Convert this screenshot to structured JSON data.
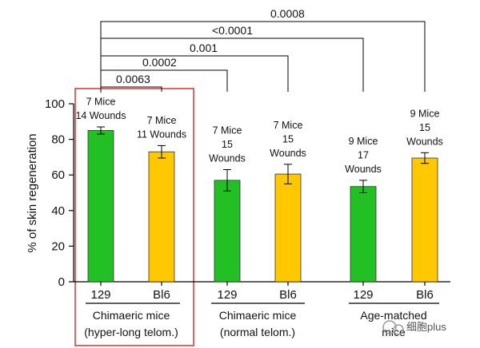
{
  "chart_data": {
    "type": "bar",
    "ylabel": "% of skin regeneration",
    "ylim": [
      0,
      100
    ],
    "yticks": [
      0,
      20,
      40,
      60,
      80,
      100
    ],
    "grid": false,
    "groups": [
      {
        "line1": "Chimaeric mice",
        "line2": "(hyper-long telom.)",
        "highlighted": true
      },
      {
        "line1": "Chimaeric mice",
        "line2": "(normal telom.)",
        "highlighted": false
      },
      {
        "line1": "Age-matched",
        "line2": "mice",
        "highlighted": false
      }
    ],
    "bars": [
      {
        "category": "129",
        "group": 0,
        "value": 85,
        "error": 2,
        "color": "#22c024",
        "note": [
          "7 Mice",
          "14 Wounds"
        ]
      },
      {
        "category": "Bl6",
        "group": 0,
        "value": 73,
        "error": 3.5,
        "color": "#ffc800",
        "note": [
          "7 Mice",
          "11 Wounds"
        ]
      },
      {
        "category": "129",
        "group": 1,
        "value": 57,
        "error": 6,
        "color": "#22c024",
        "note": [
          "7 Mice",
          "15",
          "Wounds"
        ]
      },
      {
        "category": "Bl6",
        "group": 1,
        "value": 60.5,
        "error": 5.5,
        "color": "#ffc800",
        "note": [
          "7 Mice",
          "15",
          "Wounds"
        ]
      },
      {
        "category": "129",
        "group": 2,
        "value": 53.5,
        "error": 3.5,
        "color": "#22c024",
        "note": [
          "9 Mice",
          "17",
          "Wounds"
        ]
      },
      {
        "category": "Bl6",
        "group": 2,
        "value": 69.5,
        "error": 3,
        "color": "#ffc800",
        "note": [
          "9 Mice",
          "15",
          "Wounds"
        ]
      }
    ],
    "comparisons": [
      {
        "from": 0,
        "to": 1,
        "label": "0.0063"
      },
      {
        "from": 0,
        "to": 2,
        "label": "0.0002"
      },
      {
        "from": 0,
        "to": 3,
        "label": "0.001"
      },
      {
        "from": 0,
        "to": 4,
        "label": "<0.0001"
      },
      {
        "from": 0,
        "to": 5,
        "label": "0.0008"
      }
    ]
  },
  "watermark": "细胞plus",
  "highlight_color": "#e03030"
}
